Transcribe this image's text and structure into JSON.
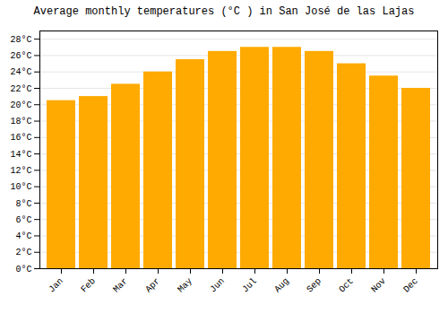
{
  "chart_data": {
    "type": "bar",
    "title": "Average monthly temperatures (°C ) in San José de las Lajas",
    "categories": [
      "Jan",
      "Feb",
      "Mar",
      "Apr",
      "May",
      "Jun",
      "Jul",
      "Aug",
      "Sep",
      "Oct",
      "Nov",
      "Dec"
    ],
    "values": [
      20.5,
      21.0,
      22.5,
      24.0,
      25.5,
      26.5,
      27.0,
      27.0,
      26.5,
      25.0,
      23.5,
      22.0
    ],
    "color": "#FFAA00",
    "ylim": [
      0,
      29
    ],
    "yticks": [
      {
        "value": 0,
        "label": "0°C"
      },
      {
        "value": 2,
        "label": "2°C"
      },
      {
        "value": 4,
        "label": "4°C"
      },
      {
        "value": 6,
        "label": "6°C"
      },
      {
        "value": 8,
        "label": "8°C"
      },
      {
        "value": 10,
        "label": "10°C"
      },
      {
        "value": 12,
        "label": "12°C"
      },
      {
        "value": 14,
        "label": "14°C"
      },
      {
        "value": 16,
        "label": "16°C"
      },
      {
        "value": 18,
        "label": "18°C"
      },
      {
        "value": 20,
        "label": "20°C"
      },
      {
        "value": 22,
        "label": "22°C"
      },
      {
        "value": 24,
        "label": "24°C"
      },
      {
        "value": 26,
        "label": "26°C"
      },
      {
        "value": 28,
        "label": "28°C"
      }
    ],
    "grid": true
  }
}
